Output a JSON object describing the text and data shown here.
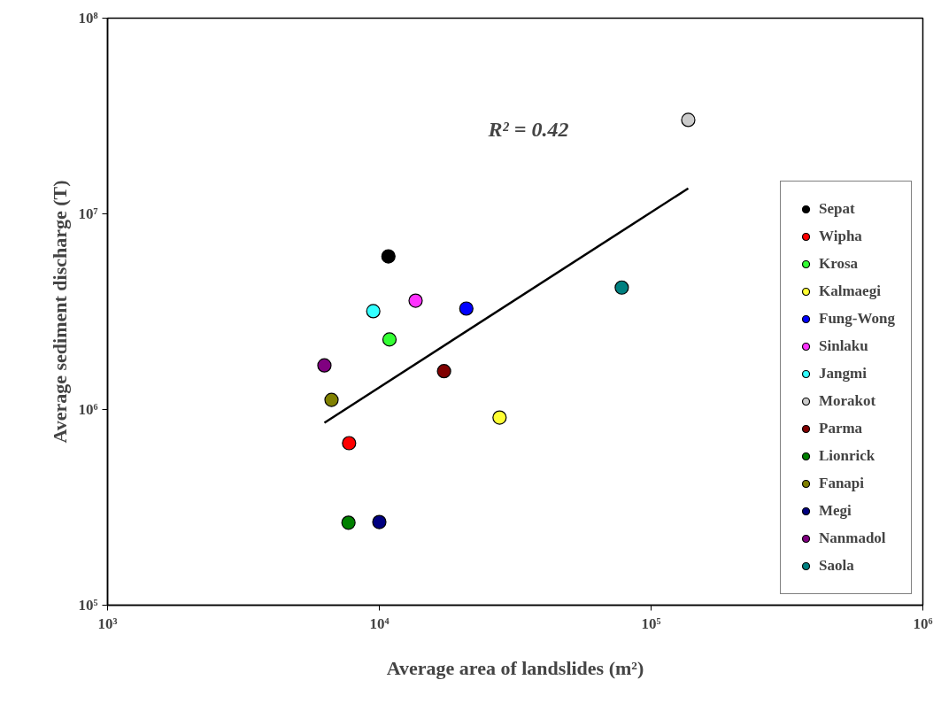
{
  "chart_data": {
    "type": "scatter",
    "xlabel": "Average area of landslides (m²)",
    "ylabel": "Average sediment discharge (T)",
    "log": "xy",
    "grid": false,
    "legend": "bottom right",
    "marker": "circle",
    "xlim": [
      1000,
      1000000
    ],
    "ylim": [
      100000,
      100000000
    ],
    "xticks": [
      {
        "value": 1000,
        "label": "10³"
      },
      {
        "value": 10000,
        "label": "10⁴"
      },
      {
        "value": 100000,
        "label": "10⁵"
      },
      {
        "value": 1000000,
        "label": "10⁶"
      }
    ],
    "yticks": [
      {
        "value": 100000,
        "label": "10⁵"
      },
      {
        "value": 1000000,
        "label": "10⁶"
      },
      {
        "value": 10000000,
        "label": "10⁷"
      },
      {
        "value": 100000000,
        "label": "10⁸"
      }
    ],
    "annotations": [
      "R² = 0.42"
    ],
    "series": [
      {
        "name": "Sepat",
        "color": "#000000",
        "x": [
          10800
        ],
        "values": [
          6060000
        ]
      },
      {
        "name": "Wipha",
        "color": "#ff0000",
        "x": [
          7740
        ],
        "values": [
          673000
        ]
      },
      {
        "name": "Krosa",
        "color": "#33ff33",
        "x": [
          10900
        ],
        "values": [
          2280000
        ]
      },
      {
        "name": "Kalmaegi",
        "color": "#ffff33",
        "x": [
          27700
        ],
        "values": [
          910000
        ]
      },
      {
        "name": "Fung-Wong",
        "color": "#0000ff",
        "x": [
          20900
        ],
        "values": [
          3280000
        ]
      },
      {
        "name": "Sinlaku",
        "color": "#ff33ff",
        "x": [
          13600
        ],
        "values": [
          3600000
        ]
      },
      {
        "name": "Jangmi",
        "color": "#33ffff",
        "x": [
          9500
        ],
        "values": [
          3180000
        ]
      },
      {
        "name": "Morakot",
        "color": "#cccccc",
        "x": [
          137000
        ],
        "values": [
          30200000
        ]
      },
      {
        "name": "Parma",
        "color": "#800000",
        "x": [
          17300
        ],
        "values": [
          1570000
        ]
      },
      {
        "name": "Lionrick",
        "color": "#008000",
        "x": [
          7700
        ],
        "values": [
          264000
        ]
      },
      {
        "name": "Fanapi",
        "color": "#808000",
        "x": [
          6670
        ],
        "values": [
          1120000
        ]
      },
      {
        "name": "Megi",
        "color": "#000080",
        "x": [
          10000
        ],
        "values": [
          266000
        ]
      },
      {
        "name": "Nanmadol",
        "color": "#800080",
        "x": [
          6280
        ],
        "values": [
          1680000
        ]
      },
      {
        "name": "Saola",
        "color": "#008080",
        "x": [
          78000
        ],
        "values": [
          4200000
        ]
      },
      {
        "type": "line",
        "color": "#000000",
        "x": [
          6280,
          137000
        ],
        "values": [
          855000,
          13500000
        ],
        "line_style": "solid",
        "marker": "none"
      }
    ]
  }
}
